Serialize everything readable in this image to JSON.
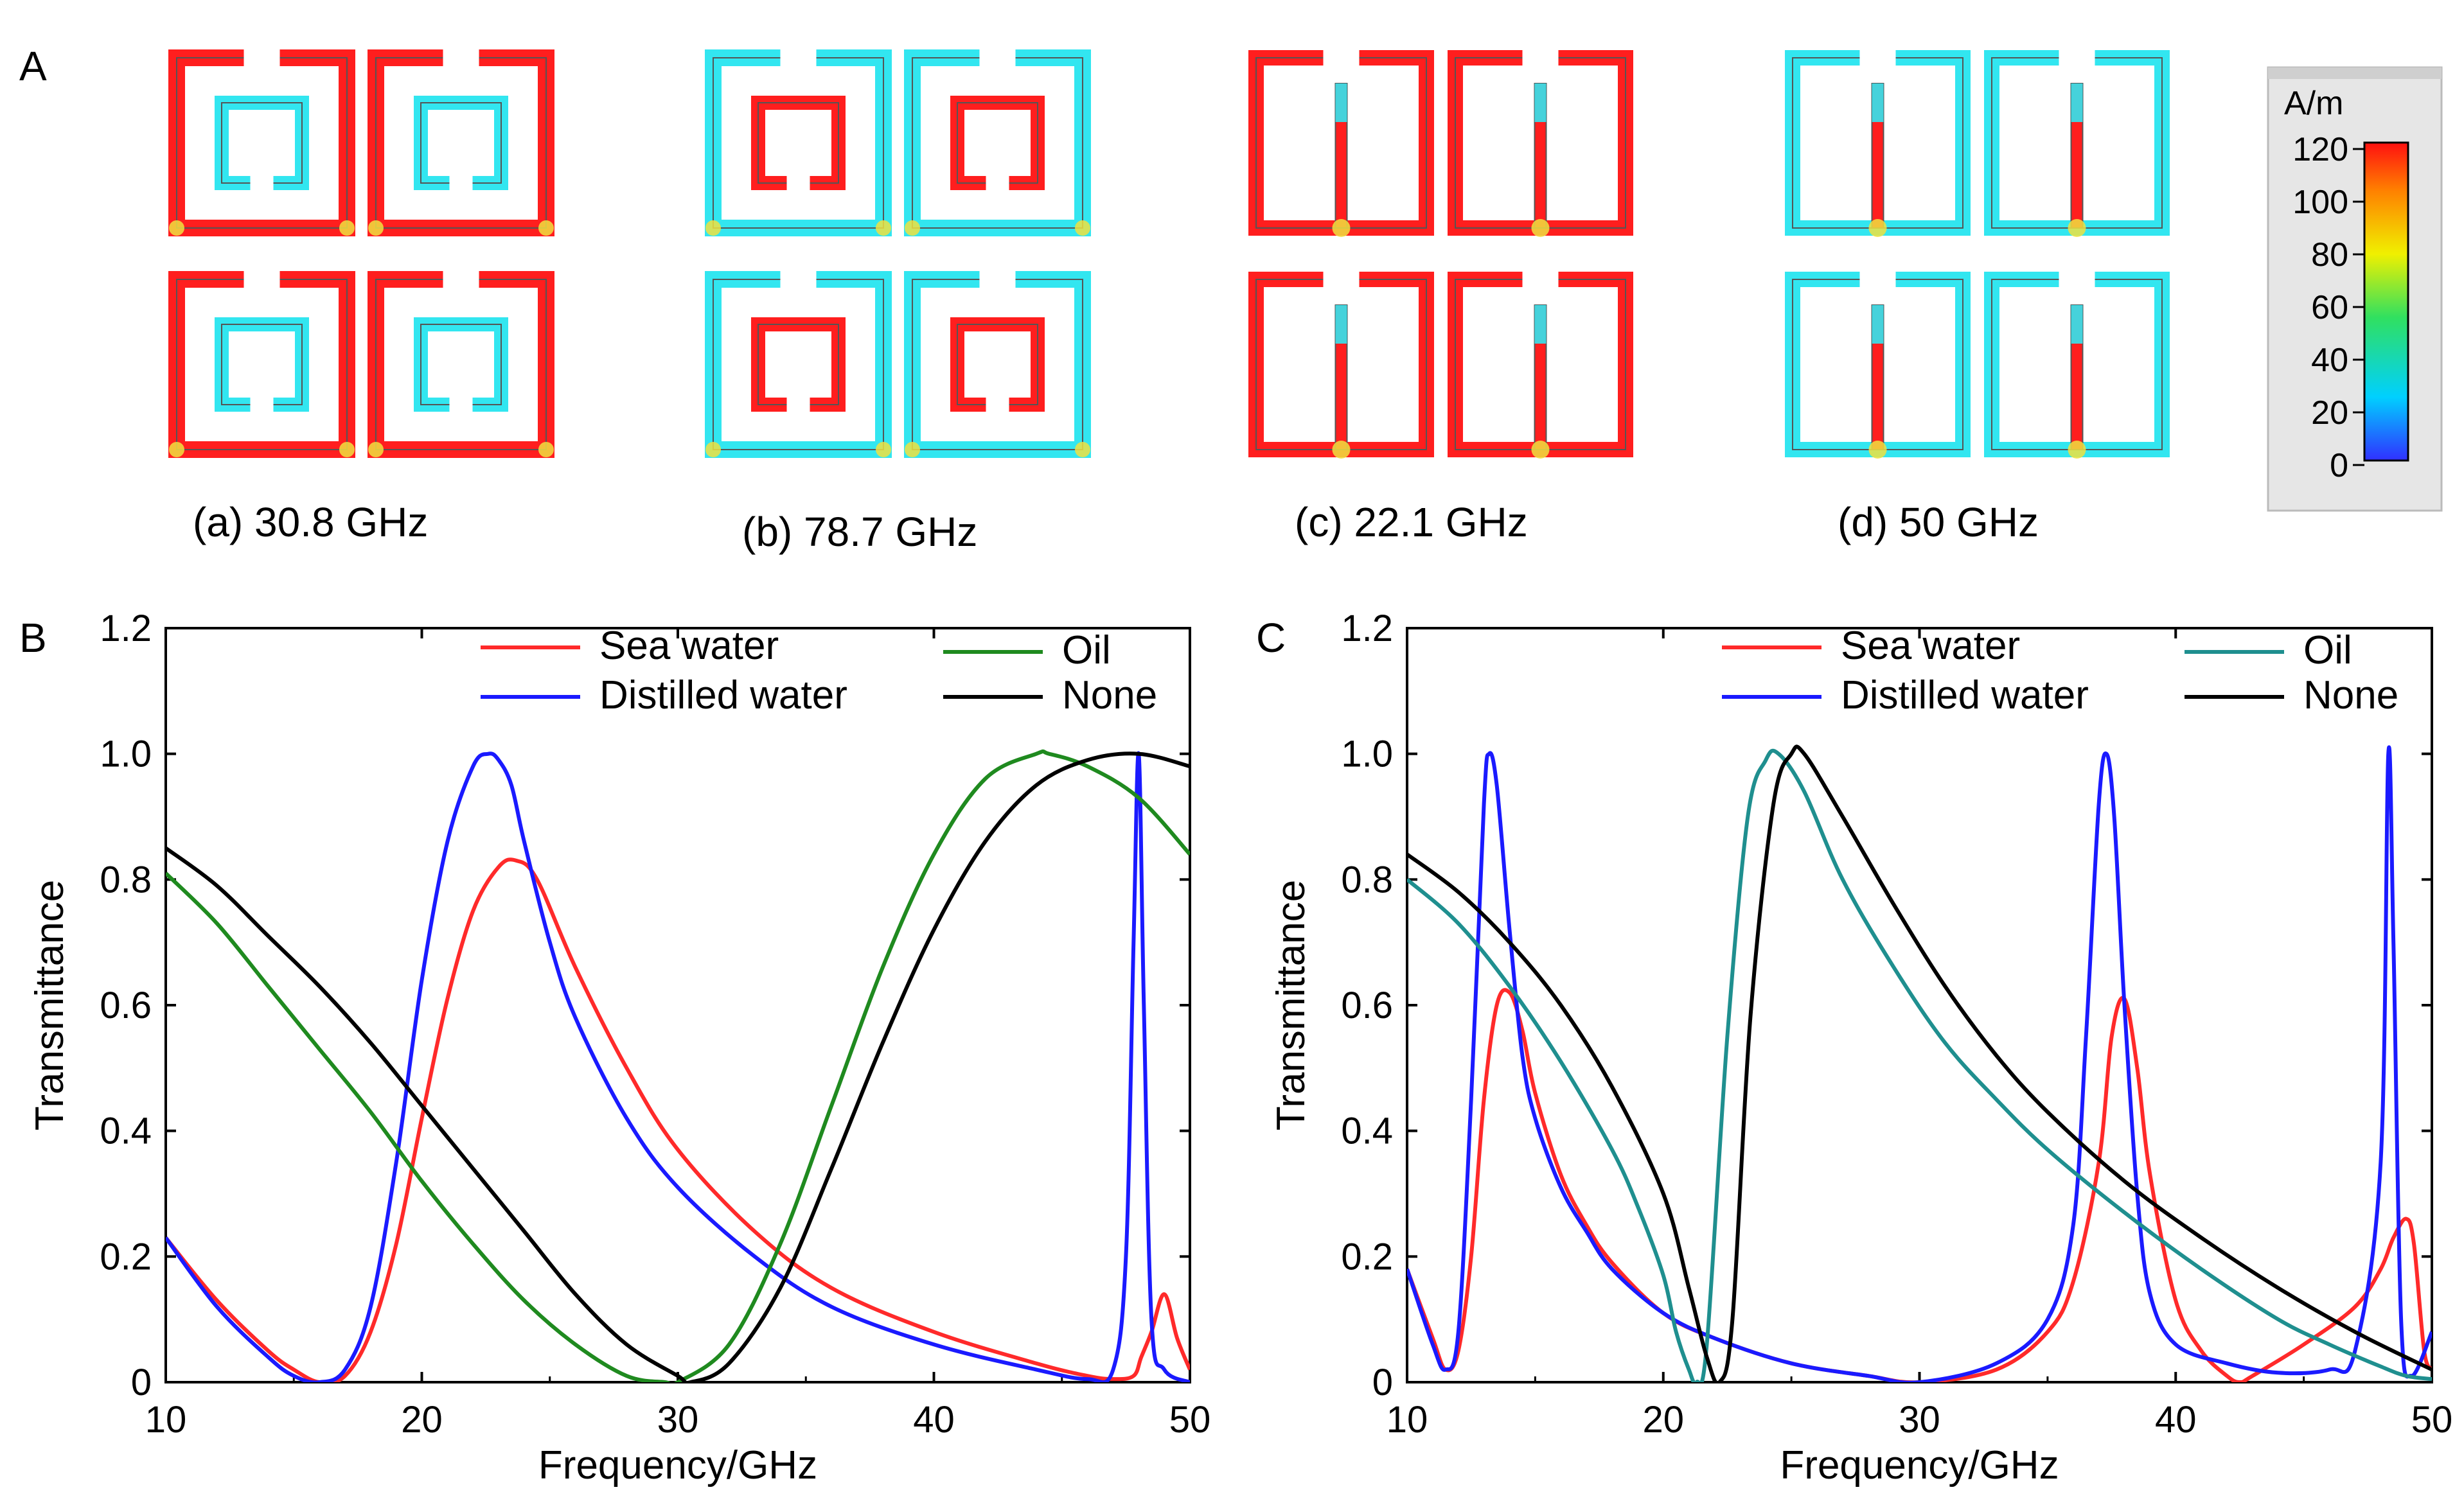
{
  "panel_labels": {
    "a": "A",
    "b": "B",
    "c": "C"
  },
  "simulations": [
    {
      "caption": "(a) 30.8 GHz",
      "structure": "nested-split-rings",
      "outer": "red",
      "inner": "cyan"
    },
    {
      "caption": "(b) 78.7 GHz",
      "structure": "nested-split-rings",
      "outer": "cyan",
      "inner": "red"
    },
    {
      "caption": "(c) 22.1 GHz",
      "structure": "ring-with-stub",
      "outer": "red",
      "stub": "red"
    },
    {
      "caption": "(d) 50 GHz",
      "structure": "ring-with-stub",
      "outer": "cyan",
      "stub": "red"
    }
  ],
  "colorbar": {
    "unit": "A/m",
    "ticks": [
      "120",
      "100",
      "80",
      "60",
      "40",
      "20",
      "0"
    ]
  },
  "colors": {
    "sea": "#ff2a2a",
    "distilled": "#1a1aff",
    "oil": "#1f8a1f",
    "none": "#000000",
    "oil_c": "#1f8f8f"
  },
  "chart_data": [
    {
      "type": "line",
      "panel": "B",
      "xlabel": "Frequency/GHz",
      "ylabel": "Transmittance",
      "xlim": [
        10,
        50
      ],
      "ylim": [
        0,
        1.2
      ],
      "xticks": [
        "10",
        "20",
        "30",
        "40",
        "50"
      ],
      "yticks": [
        "0",
        "0.2",
        "0.4",
        "0.6",
        "0.8",
        "1.0",
        "1.2"
      ],
      "legend": [
        "Sea water",
        "Distilled water",
        "Oil",
        "None"
      ],
      "series": [
        {
          "name": "Sea water",
          "color": "#ff2a2a",
          "x": [
            10,
            12,
            14,
            15,
            16,
            17,
            18,
            19,
            20,
            21,
            22,
            23,
            23.7,
            24.5,
            26,
            28,
            30,
            33,
            36,
            40,
            44,
            46,
            47,
            47.8,
            48.1,
            48.5,
            49,
            49.5,
            50
          ],
          "y": [
            0.23,
            0.13,
            0.05,
            0.02,
            0.0,
            0.01,
            0.08,
            0.22,
            0.42,
            0.61,
            0.75,
            0.82,
            0.83,
            0.8,
            0.66,
            0.5,
            0.37,
            0.24,
            0.15,
            0.08,
            0.03,
            0.01,
            0.005,
            0.01,
            0.04,
            0.08,
            0.14,
            0.07,
            0.02
          ]
        },
        {
          "name": "Distilled water",
          "color": "#1a1aff",
          "x": [
            10,
            12,
            14,
            15,
            16,
            17,
            18,
            19,
            20,
            21,
            22,
            22.6,
            23,
            23.5,
            24,
            25,
            26,
            28,
            30,
            33,
            36,
            40,
            44,
            46,
            47,
            47.5,
            47.8,
            48,
            48.2,
            48.5,
            49,
            50
          ],
          "y": [
            0.23,
            0.12,
            0.04,
            0.01,
            0.0,
            0.02,
            0.12,
            0.35,
            0.64,
            0.86,
            0.98,
            1.0,
            0.99,
            0.95,
            0.86,
            0.7,
            0.58,
            0.42,
            0.31,
            0.2,
            0.12,
            0.06,
            0.02,
            0.005,
            0.02,
            0.2,
            0.7,
            1.0,
            0.6,
            0.1,
            0.02,
            0.0
          ]
        },
        {
          "name": "Oil",
          "color": "#1f8a1f",
          "x": [
            10,
            12,
            14,
            16,
            18,
            20,
            22,
            24,
            26,
            28,
            29.5,
            30,
            32,
            34,
            36,
            38,
            40,
            42,
            44,
            44.5,
            46,
            48,
            50
          ],
          "y": [
            0.81,
            0.73,
            0.63,
            0.53,
            0.43,
            0.32,
            0.22,
            0.13,
            0.06,
            0.01,
            0.0,
            0.0,
            0.06,
            0.22,
            0.44,
            0.66,
            0.84,
            0.96,
            1.0,
            1.0,
            0.98,
            0.93,
            0.84
          ]
        },
        {
          "name": "None",
          "color": "#000000",
          "x": [
            10,
            12,
            14,
            16,
            18,
            20,
            22,
            24,
            26,
            28,
            30,
            30.5,
            32,
            34,
            36,
            38,
            40,
            42,
            44,
            46,
            48,
            50
          ],
          "y": [
            0.85,
            0.79,
            0.71,
            0.63,
            0.54,
            0.44,
            0.34,
            0.24,
            0.14,
            0.06,
            0.01,
            0.0,
            0.03,
            0.15,
            0.34,
            0.54,
            0.72,
            0.86,
            0.95,
            0.99,
            1.0,
            0.98
          ]
        }
      ]
    },
    {
      "type": "line",
      "panel": "C",
      "xlabel": "Frequency/GHz",
      "ylabel": "Transmittance",
      "xlim": [
        10,
        50
      ],
      "ylim": [
        0,
        1.2
      ],
      "xticks": [
        "10",
        "20",
        "30",
        "40",
        "50"
      ],
      "yticks": [
        "0",
        "0.2",
        "0.4",
        "0.6",
        "0.8",
        "1.0",
        "1.2"
      ],
      "legend": [
        "Sea water",
        "Distilled water",
        "Oil",
        "None"
      ],
      "series": [
        {
          "name": "Sea water",
          "color": "#ff2a2a",
          "x": [
            10,
            11,
            11.5,
            12,
            12.5,
            13,
            13.5,
            14,
            14.5,
            15,
            16,
            17,
            18,
            20,
            22,
            25,
            28,
            30,
            33,
            35,
            36,
            37,
            37.5,
            38,
            38.5,
            39,
            40,
            41,
            42,
            42.5,
            43,
            45,
            47,
            48,
            48.5,
            49,
            49.3,
            49.7,
            50
          ],
          "y": [
            0.18,
            0.07,
            0.02,
            0.05,
            0.2,
            0.45,
            0.6,
            0.62,
            0.56,
            0.46,
            0.33,
            0.25,
            0.19,
            0.11,
            0.07,
            0.03,
            0.01,
            0.0,
            0.02,
            0.08,
            0.16,
            0.35,
            0.55,
            0.61,
            0.5,
            0.33,
            0.13,
            0.05,
            0.01,
            0.0,
            0.01,
            0.06,
            0.12,
            0.18,
            0.23,
            0.26,
            0.22,
            0.05,
            0.02
          ]
        },
        {
          "name": "Distilled water",
          "color": "#1a1aff",
          "x": [
            10,
            11,
            11.5,
            12,
            12.5,
            13,
            13.2,
            13.5,
            14,
            14.5,
            15,
            16,
            17,
            18,
            20,
            22,
            25,
            28,
            30,
            33,
            35,
            36,
            36.5,
            37,
            37.3,
            37.6,
            38,
            38.5,
            39,
            40,
            42,
            44,
            46,
            47,
            48,
            48.3,
            48.5,
            48.8,
            49.2,
            50
          ],
          "y": [
            0.18,
            0.06,
            0.02,
            0.08,
            0.45,
            0.92,
            1.0,
            0.95,
            0.72,
            0.52,
            0.42,
            0.31,
            0.24,
            0.18,
            0.11,
            0.07,
            0.03,
            0.01,
            0.0,
            0.03,
            0.1,
            0.25,
            0.55,
            0.92,
            1.0,
            0.9,
            0.6,
            0.3,
            0.14,
            0.06,
            0.03,
            0.015,
            0.02,
            0.05,
            0.35,
            1.0,
            0.7,
            0.1,
            0.01,
            0.08
          ]
        },
        {
          "name": "Oil",
          "color": "#1f8f8f",
          "x": [
            10,
            12,
            14,
            16,
            18,
            19,
            20,
            20.5,
            21,
            21.3,
            21.7,
            22.5,
            23.3,
            24,
            24.5,
            25.5,
            27,
            29,
            31,
            33,
            35,
            38,
            41,
            44,
            46,
            48,
            49,
            50
          ],
          "y": [
            0.8,
            0.73,
            0.63,
            0.51,
            0.37,
            0.28,
            0.17,
            0.08,
            0.02,
            0.0,
            0.06,
            0.55,
            0.9,
            0.99,
            1.0,
            0.94,
            0.8,
            0.66,
            0.54,
            0.45,
            0.37,
            0.27,
            0.18,
            0.1,
            0.06,
            0.025,
            0.01,
            0.005
          ]
        },
        {
          "name": "None",
          "color": "#000000",
          "x": [
            10,
            12,
            14,
            16,
            18,
            20,
            21,
            21.7,
            22.2,
            22.7,
            23.4,
            24.3,
            25,
            25.5,
            27,
            29,
            31,
            33,
            35,
            38,
            41,
            44,
            47,
            50
          ],
          "y": [
            0.84,
            0.78,
            0.7,
            0.6,
            0.47,
            0.3,
            0.15,
            0.04,
            0.0,
            0.1,
            0.58,
            0.92,
            1.0,
            1.0,
            0.9,
            0.76,
            0.63,
            0.52,
            0.43,
            0.32,
            0.23,
            0.15,
            0.08,
            0.02
          ]
        }
      ]
    }
  ]
}
